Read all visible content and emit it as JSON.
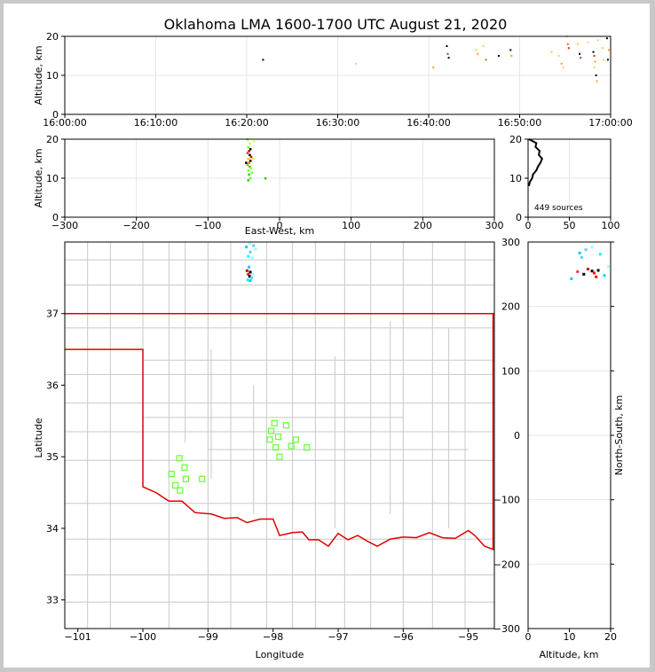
{
  "figure": {
    "title": "Oklahoma LMA 1600-1700 UTC August 21, 2020",
    "colors": {
      "grid": "#e6e6e6",
      "county": "#c8c8c8",
      "state_border": "#e00000",
      "station": "#66ff33",
      "frame": "#000000"
    }
  },
  "chart_data": [
    {
      "id": "time-altitude",
      "type": "scatter",
      "ylabel": "Altitude, km",
      "xlabel": "",
      "x_tick_labels": [
        "16:00:00",
        "16:10:00",
        "16:20:00",
        "16:30:00",
        "16:40:00",
        "16:50:00",
        "17:00:00"
      ],
      "xlim_minutes": [
        0,
        60
      ],
      "ylim": [
        0,
        20
      ],
      "y_ticks": [
        0,
        10,
        20
      ],
      "grid": true,
      "points": [
        {
          "x": 21.8,
          "y": 14,
          "c": "#000000"
        },
        {
          "x": 32.0,
          "y": 13,
          "c": "#ffcc66"
        },
        {
          "x": 40.5,
          "y": 12,
          "c": "#ff9933"
        },
        {
          "x": 42.0,
          "y": 17.5,
          "c": "#000000"
        },
        {
          "x": 42.1,
          "y": 15.5,
          "c": "#cc3300"
        },
        {
          "x": 42.2,
          "y": 14.5,
          "c": "#000000"
        },
        {
          "x": 45.2,
          "y": 16.5,
          "c": "#ffcc33"
        },
        {
          "x": 45.4,
          "y": 15.5,
          "c": "#ff9933"
        },
        {
          "x": 46.0,
          "y": 17.5,
          "c": "#ffcc66"
        },
        {
          "x": 46.3,
          "y": 14,
          "c": "#cc6600"
        },
        {
          "x": 47.7,
          "y": 15,
          "c": "#000000"
        },
        {
          "x": 49.0,
          "y": 16.5,
          "c": "#000000"
        },
        {
          "x": 49.1,
          "y": 15,
          "c": "#ff9933"
        },
        {
          "x": 53.5,
          "y": 16,
          "c": "#ffcc33"
        },
        {
          "x": 54.3,
          "y": 15,
          "c": "#ffcc66"
        },
        {
          "x": 54.6,
          "y": 13,
          "c": "#ff9933"
        },
        {
          "x": 54.8,
          "y": 12,
          "c": "#ffcc66"
        },
        {
          "x": 55.2,
          "y": 20,
          "c": "#ffcc66"
        },
        {
          "x": 55.3,
          "y": 18,
          "c": "#ff6600"
        },
        {
          "x": 55.4,
          "y": 17,
          "c": "#cc3300"
        },
        {
          "x": 56.4,
          "y": 18,
          "c": "#ffcc33"
        },
        {
          "x": 56.6,
          "y": 15.5,
          "c": "#000000"
        },
        {
          "x": 56.7,
          "y": 14.5,
          "c": "#cc3300"
        },
        {
          "x": 57.5,
          "y": 18.5,
          "c": "#ffcc66"
        },
        {
          "x": 58.1,
          "y": 16,
          "c": "#000000"
        },
        {
          "x": 58.2,
          "y": 15,
          "c": "#cc3300"
        },
        {
          "x": 58.3,
          "y": 13.5,
          "c": "#ff9933"
        },
        {
          "x": 58.2,
          "y": 12,
          "c": "#ffcc66"
        },
        {
          "x": 58.4,
          "y": 10,
          "c": "#000000"
        },
        {
          "x": 58.5,
          "y": 8.5,
          "c": "#ff9933"
        },
        {
          "x": 58.6,
          "y": 19,
          "c": "#ffcc66"
        },
        {
          "x": 59.1,
          "y": 17,
          "c": "#ffcc33"
        },
        {
          "x": 59.2,
          "y": 14,
          "c": "#ffcc66"
        },
        {
          "x": 59.6,
          "y": 19.5,
          "c": "#000000"
        },
        {
          "x": 59.7,
          "y": 14,
          "c": "#000000"
        },
        {
          "x": 59.8,
          "y": 16.5,
          "c": "#ff9933"
        }
      ]
    },
    {
      "id": "ew-altitude",
      "type": "scatter",
      "xlabel": "East-West, km",
      "ylabel": "Altitude, km",
      "xlim": [
        -300,
        300
      ],
      "ylim": [
        0,
        20
      ],
      "x_ticks": [
        -300,
        -200,
        -100,
        0,
        100,
        200,
        300
      ],
      "y_ticks": [
        0,
        10,
        20
      ],
      "grid": true,
      "points": [
        {
          "x": -45,
          "y": 20,
          "c": "#66ff33"
        },
        {
          "x": -42,
          "y": 19,
          "c": "#ccff33"
        },
        {
          "x": -44,
          "y": 18,
          "c": "#66ff33"
        },
        {
          "x": -41,
          "y": 17.5,
          "c": "#000000"
        },
        {
          "x": -43,
          "y": 17,
          "c": "#cc0000"
        },
        {
          "x": -45,
          "y": 16.5,
          "c": "#ff3300"
        },
        {
          "x": -42,
          "y": 16,
          "c": "#000000"
        },
        {
          "x": -40,
          "y": 15.5,
          "c": "#cc0000"
        },
        {
          "x": -44,
          "y": 15,
          "c": "#ffcc00"
        },
        {
          "x": -41,
          "y": 14.5,
          "c": "#000000"
        },
        {
          "x": -43,
          "y": 14,
          "c": "#ff6600"
        },
        {
          "x": -45,
          "y": 13.5,
          "c": "#66cc00"
        },
        {
          "x": -42,
          "y": 13,
          "c": "#33cc00"
        },
        {
          "x": -40,
          "y": 12.5,
          "c": "#99ff33"
        },
        {
          "x": -44,
          "y": 12,
          "c": "#66ff33"
        },
        {
          "x": -39,
          "y": 11.5,
          "c": "#66ff33"
        },
        {
          "x": -43,
          "y": 11,
          "c": "#33cc00"
        },
        {
          "x": -41,
          "y": 10,
          "c": "#66ff33"
        },
        {
          "x": -44,
          "y": 9.5,
          "c": "#33cc00"
        },
        {
          "x": -37,
          "y": 15,
          "c": "#ccff33"
        },
        {
          "x": -36,
          "y": 19.5,
          "c": "#ccff66"
        },
        {
          "x": -20,
          "y": 10,
          "c": "#33cc00"
        },
        {
          "x": -47,
          "y": 14,
          "c": "#000000"
        }
      ]
    },
    {
      "id": "altitude-histogram",
      "type": "line",
      "xlim": [
        0,
        100
      ],
      "ylim": [
        0,
        20
      ],
      "x_ticks": [
        0,
        50,
        100
      ],
      "y_ticks": [
        0,
        10,
        20
      ],
      "annotation": "449 sources",
      "counts": [
        {
          "alt": 8,
          "n": 1
        },
        {
          "alt": 9,
          "n": 2
        },
        {
          "alt": 10,
          "n": 5
        },
        {
          "alt": 11,
          "n": 6
        },
        {
          "alt": 12,
          "n": 10
        },
        {
          "alt": 13,
          "n": 12
        },
        {
          "alt": 14,
          "n": 15
        },
        {
          "alt": 15,
          "n": 17
        },
        {
          "alt": 16,
          "n": 13
        },
        {
          "alt": 17,
          "n": 14
        },
        {
          "alt": 18,
          "n": 9
        },
        {
          "alt": 19,
          "n": 10
        },
        {
          "alt": 20,
          "n": 1
        }
      ]
    },
    {
      "id": "plan-view",
      "type": "map",
      "xlabel": "Longitude",
      "ylabel": "Latitude",
      "right_label": "North-South, km",
      "lon_lim": [
        -101.2,
        -94.6
      ],
      "lat_lim": [
        32.6,
        38.0
      ],
      "lon_ticks": [
        -101,
        -100,
        -99,
        -98,
        -97,
        -96,
        -95
      ],
      "lat_ticks": [
        33,
        34,
        35,
        36,
        37
      ],
      "ns_km_ticks": [
        -300,
        -200,
        -100,
        0,
        100,
        200,
        300
      ],
      "stations": [
        {
          "lon": -97.98,
          "lat": 35.47
        },
        {
          "lon": -97.8,
          "lat": 35.44
        },
        {
          "lon": -98.03,
          "lat": 35.36
        },
        {
          "lon": -97.92,
          "lat": 35.28
        },
        {
          "lon": -98.05,
          "lat": 35.24
        },
        {
          "lon": -97.65,
          "lat": 35.24
        },
        {
          "lon": -97.96,
          "lat": 35.13
        },
        {
          "lon": -97.72,
          "lat": 35.15
        },
        {
          "lon": -97.48,
          "lat": 35.13
        },
        {
          "lon": -97.9,
          "lat": 35.0
        },
        {
          "lon": -99.44,
          "lat": 34.98
        },
        {
          "lon": -99.36,
          "lat": 34.85
        },
        {
          "lon": -99.56,
          "lat": 34.76
        },
        {
          "lon": -99.34,
          "lat": 34.69
        },
        {
          "lon": -99.09,
          "lat": 34.69
        },
        {
          "lon": -99.5,
          "lat": 34.6
        },
        {
          "lon": -99.43,
          "lat": 34.53
        }
      ],
      "sources": [
        {
          "lon": -98.36,
          "lat": 37.98,
          "c": "#99ffff"
        },
        {
          "lon": -98.3,
          "lat": 37.95,
          "c": "#66ccff"
        },
        {
          "lon": -98.41,
          "lat": 37.93,
          "c": "#00ccff"
        },
        {
          "lon": -98.27,
          "lat": 37.9,
          "c": "#99ffff"
        },
        {
          "lon": -98.35,
          "lat": 37.86,
          "c": "#66ccff"
        },
        {
          "lon": -98.38,
          "lat": 37.8,
          "c": "#00ffff"
        },
        {
          "lon": -98.32,
          "lat": 37.78,
          "c": "#99ffff"
        },
        {
          "lon": -98.37,
          "lat": 37.65,
          "c": "#00ccff"
        },
        {
          "lon": -98.4,
          "lat": 37.6,
          "c": "#cc0000"
        },
        {
          "lon": -98.35,
          "lat": 37.58,
          "c": "#000000"
        },
        {
          "lon": -98.38,
          "lat": 37.55,
          "c": "#ff0000"
        },
        {
          "lon": -98.36,
          "lat": 37.52,
          "c": "#000000"
        },
        {
          "lon": -98.33,
          "lat": 37.5,
          "c": "#66ccff"
        },
        {
          "lon": -98.39,
          "lat": 37.47,
          "c": "#00ffff"
        },
        {
          "lon": -98.35,
          "lat": 37.46,
          "c": "#00ccff"
        },
        {
          "lon": -98.31,
          "lat": 37.55,
          "c": "#99ffff"
        }
      ],
      "ns_sources": [
        {
          "alt": 12.5,
          "km": 283,
          "c": "#00ccff"
        },
        {
          "alt": 14.0,
          "km": 288,
          "c": "#66ccff"
        },
        {
          "alt": 15.5,
          "km": 292,
          "c": "#99ffff"
        },
        {
          "alt": 17.5,
          "km": 281,
          "c": "#00ffff"
        },
        {
          "alt": 13.0,
          "km": 276,
          "c": "#66ccff"
        },
        {
          "alt": 14.5,
          "km": 258,
          "c": "#cc0000"
        },
        {
          "alt": 15.5,
          "km": 255,
          "c": "#000000"
        },
        {
          "alt": 16.0,
          "km": 252,
          "c": "#ff0000"
        },
        {
          "alt": 17.0,
          "km": 256,
          "c": "#000000"
        },
        {
          "alt": 12.0,
          "km": 254,
          "c": "#ff3333"
        },
        {
          "alt": 13.5,
          "km": 250,
          "c": "#000000"
        },
        {
          "alt": 18.5,
          "km": 248,
          "c": "#00ccff"
        },
        {
          "alt": 16.5,
          "km": 246,
          "c": "#ff0000"
        },
        {
          "alt": 19.5,
          "km": 262,
          "c": "#99ffff"
        },
        {
          "alt": 10.5,
          "km": 243,
          "c": "#00ccff"
        }
      ]
    }
  ]
}
